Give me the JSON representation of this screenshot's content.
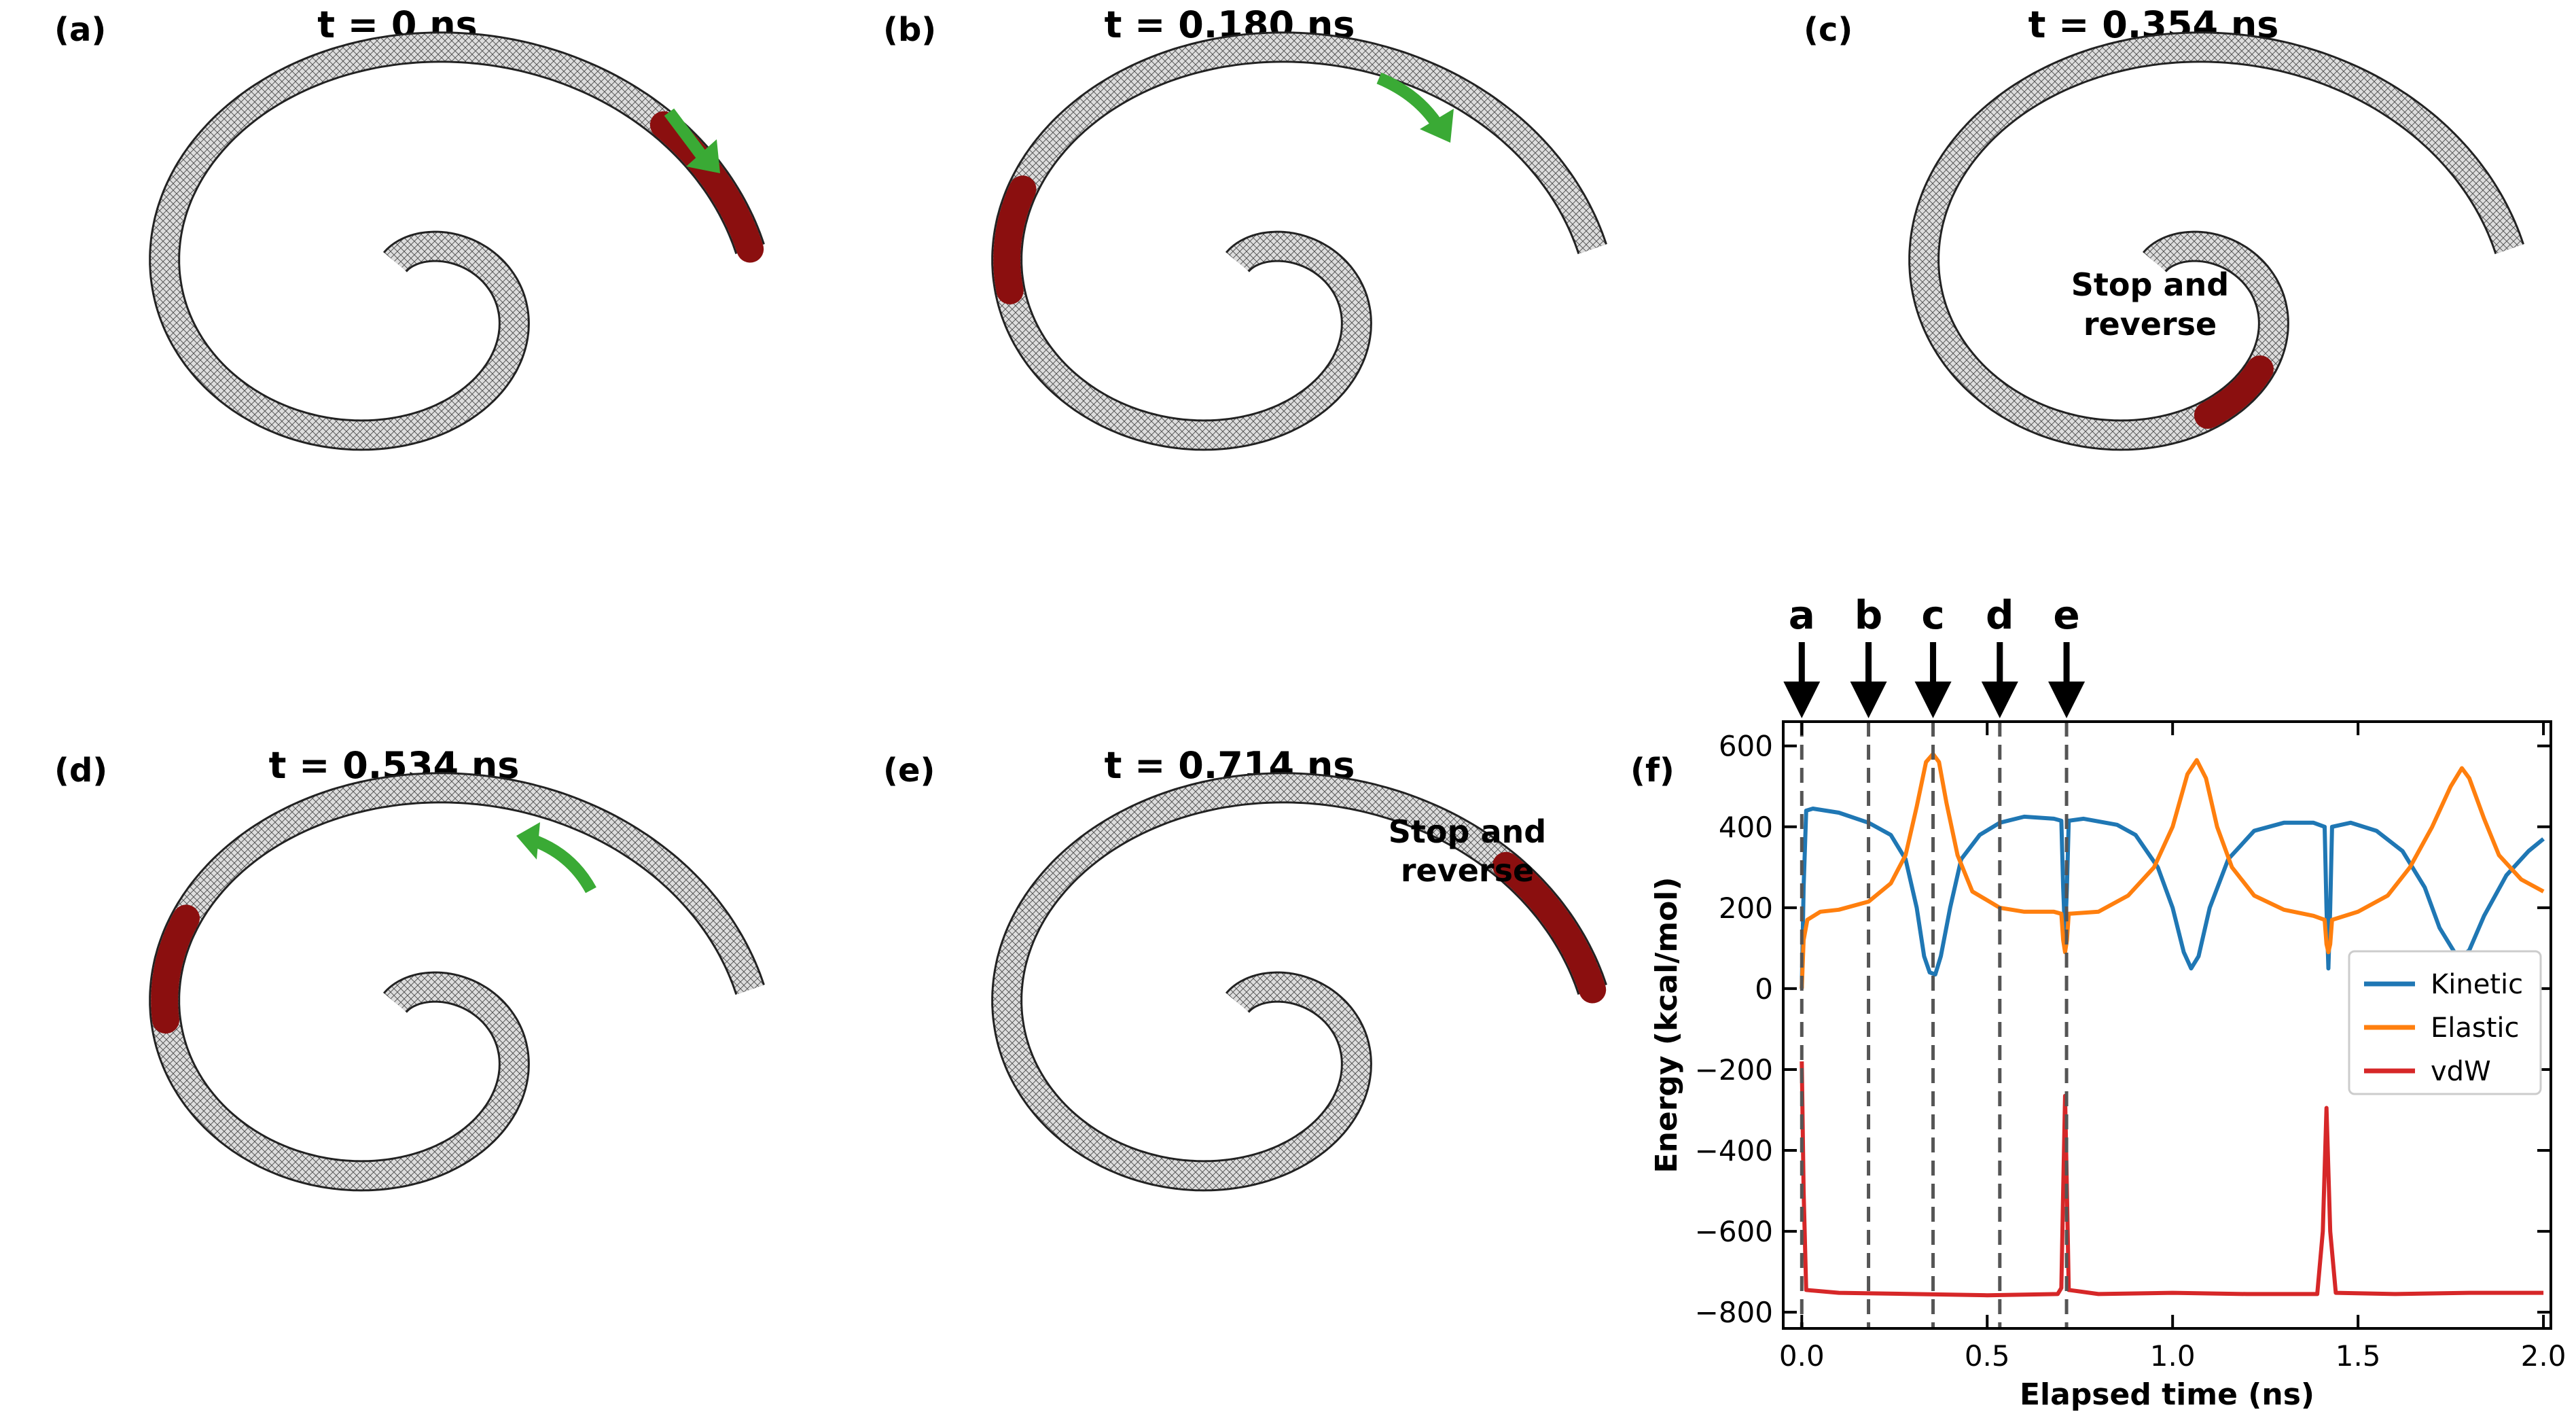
{
  "panels": [
    {
      "label": "(a)",
      "title": "t = 0 ns"
    },
    {
      "label": "(b)",
      "title": "t = 0.180 ns"
    },
    {
      "label": "(c)",
      "title": "t = 0.354 ns",
      "annotation": [
        "Stop and",
        "reverse"
      ]
    },
    {
      "label": "(d)",
      "title": "t = 0.534 ns"
    },
    {
      "label": "(e)",
      "title": "t = 0.714 ns",
      "annotation": [
        "Stop and",
        "reverse"
      ]
    },
    {
      "label": "(f)"
    }
  ],
  "colors": {
    "tube": "#555555",
    "segment": "#8b0f0f",
    "arrow": "#3aaa35",
    "kinetic": "#1f77b4",
    "elastic": "#ff7f0e",
    "vdw": "#d62728"
  },
  "chart_data": {
    "type": "line",
    "xlabel": "Elapsed time (ns)",
    "ylabel": "Energy (kcal/mol)",
    "xlim": [
      -0.05,
      2.02
    ],
    "ylim": [
      -840,
      660
    ],
    "xticks": [
      0.0,
      0.5,
      1.0,
      1.5,
      2.0
    ],
    "xtick_labels": [
      "0.0",
      "0.5",
      "1.0",
      "1.5",
      "2.0"
    ],
    "yticks": [
      600,
      400,
      200,
      0,
      -200,
      -400,
      -600,
      -800
    ],
    "ytick_labels": [
      "600",
      "400",
      "200",
      "0",
      "−200",
      "−400",
      "−600",
      "−800"
    ],
    "legend_position": "right",
    "markers": [
      {
        "label": "a",
        "x": 0.0
      },
      {
        "label": "b",
        "x": 0.18
      },
      {
        "label": "c",
        "x": 0.354
      },
      {
        "label": "d",
        "x": 0.534
      },
      {
        "label": "e",
        "x": 0.714
      }
    ],
    "series": [
      {
        "name": "Kinetic",
        "color": "#1f77b4",
        "points": [
          [
            0.0,
            0
          ],
          [
            0.005,
            250
          ],
          [
            0.012,
            440
          ],
          [
            0.03,
            445
          ],
          [
            0.1,
            435
          ],
          [
            0.18,
            410
          ],
          [
            0.24,
            380
          ],
          [
            0.28,
            320
          ],
          [
            0.31,
            200
          ],
          [
            0.33,
            80
          ],
          [
            0.345,
            40
          ],
          [
            0.36,
            35
          ],
          [
            0.375,
            80
          ],
          [
            0.4,
            200
          ],
          [
            0.43,
            320
          ],
          [
            0.48,
            380
          ],
          [
            0.534,
            410
          ],
          [
            0.6,
            425
          ],
          [
            0.68,
            420
          ],
          [
            0.7,
            415
          ],
          [
            0.705,
            250
          ],
          [
            0.71,
            130
          ],
          [
            0.715,
            250
          ],
          [
            0.72,
            415
          ],
          [
            0.76,
            420
          ],
          [
            0.85,
            405
          ],
          [
            0.9,
            380
          ],
          [
            0.96,
            300
          ],
          [
            1.0,
            200
          ],
          [
            1.03,
            90
          ],
          [
            1.05,
            50
          ],
          [
            1.07,
            80
          ],
          [
            1.1,
            200
          ],
          [
            1.15,
            320
          ],
          [
            1.22,
            390
          ],
          [
            1.3,
            410
          ],
          [
            1.38,
            410
          ],
          [
            1.41,
            400
          ],
          [
            1.415,
            200
          ],
          [
            1.42,
            50
          ],
          [
            1.425,
            200
          ],
          [
            1.43,
            400
          ],
          [
            1.48,
            410
          ],
          [
            1.55,
            390
          ],
          [
            1.62,
            340
          ],
          [
            1.68,
            250
          ],
          [
            1.72,
            150
          ],
          [
            1.76,
            90
          ],
          [
            1.78,
            80
          ],
          [
            1.8,
            95
          ],
          [
            1.84,
            180
          ],
          [
            1.9,
            280
          ],
          [
            1.96,
            340
          ],
          [
            2.0,
            370
          ]
        ]
      },
      {
        "name": "Elastic",
        "color": "#ff7f0e",
        "points": [
          [
            0.0,
            0
          ],
          [
            0.005,
            120
          ],
          [
            0.015,
            170
          ],
          [
            0.05,
            190
          ],
          [
            0.1,
            195
          ],
          [
            0.18,
            215
          ],
          [
            0.24,
            260
          ],
          [
            0.28,
            330
          ],
          [
            0.31,
            450
          ],
          [
            0.335,
            560
          ],
          [
            0.354,
            580
          ],
          [
            0.37,
            560
          ],
          [
            0.39,
            460
          ],
          [
            0.42,
            330
          ],
          [
            0.46,
            240
          ],
          [
            0.534,
            200
          ],
          [
            0.6,
            190
          ],
          [
            0.68,
            190
          ],
          [
            0.7,
            185
          ],
          [
            0.705,
            120
          ],
          [
            0.71,
            90
          ],
          [
            0.715,
            120
          ],
          [
            0.72,
            185
          ],
          [
            0.8,
            190
          ],
          [
            0.88,
            230
          ],
          [
            0.95,
            300
          ],
          [
            1.0,
            400
          ],
          [
            1.04,
            530
          ],
          [
            1.065,
            565
          ],
          [
            1.09,
            520
          ],
          [
            1.12,
            400
          ],
          [
            1.16,
            300
          ],
          [
            1.22,
            230
          ],
          [
            1.3,
            195
          ],
          [
            1.38,
            180
          ],
          [
            1.41,
            170
          ],
          [
            1.415,
            110
          ],
          [
            1.42,
            90
          ],
          [
            1.425,
            110
          ],
          [
            1.43,
            170
          ],
          [
            1.5,
            190
          ],
          [
            1.58,
            230
          ],
          [
            1.64,
            300
          ],
          [
            1.7,
            400
          ],
          [
            1.75,
            500
          ],
          [
            1.78,
            545
          ],
          [
            1.8,
            520
          ],
          [
            1.84,
            420
          ],
          [
            1.88,
            330
          ],
          [
            1.94,
            270
          ],
          [
            2.0,
            240
          ]
        ]
      },
      {
        "name": "vdW",
        "color": "#d62728",
        "points": [
          [
            0.0,
            -180
          ],
          [
            0.005,
            -500
          ],
          [
            0.012,
            -745
          ],
          [
            0.1,
            -752
          ],
          [
            0.3,
            -755
          ],
          [
            0.5,
            -758
          ],
          [
            0.69,
            -755
          ],
          [
            0.7,
            -740
          ],
          [
            0.705,
            -500
          ],
          [
            0.71,
            -265
          ],
          [
            0.715,
            -500
          ],
          [
            0.72,
            -745
          ],
          [
            0.8,
            -755
          ],
          [
            1.0,
            -752
          ],
          [
            1.2,
            -755
          ],
          [
            1.39,
            -755
          ],
          [
            1.405,
            -600
          ],
          [
            1.415,
            -295
          ],
          [
            1.425,
            -600
          ],
          [
            1.44,
            -752
          ],
          [
            1.6,
            -755
          ],
          [
            1.8,
            -752
          ],
          [
            2.0,
            -752
          ]
        ]
      }
    ]
  }
}
